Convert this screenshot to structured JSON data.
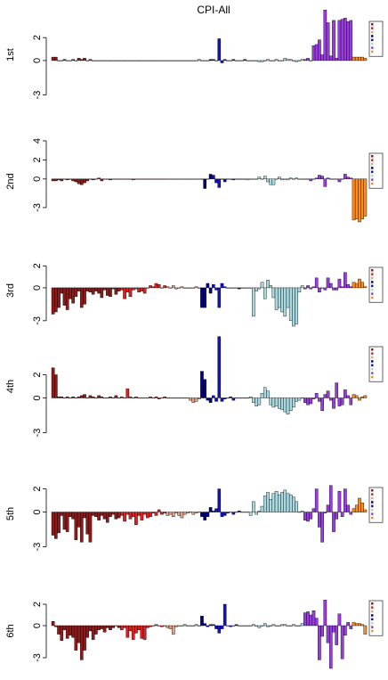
{
  "chart_data": [
    {
      "type": "bar",
      "title": "CPI-All",
      "ylabel": "1st",
      "ylim": [
        -3.5,
        4.5
      ],
      "yticks": [
        2,
        0,
        -3
      ],
      "series": [
        {
          "color": "#8b1a1a",
          "values": [
            0.3,
            0.3,
            0,
            0,
            0.1,
            0,
            0,
            0.1,
            0,
            0.2,
            0.1,
            0.2,
            0,
            0.1,
            0,
            0,
            0,
            0,
            0,
            0,
            0,
            0,
            0,
            0
          ]
        },
        {
          "color": "#e02020",
          "values": [
            0,
            0,
            0,
            0,
            0,
            0,
            0,
            0,
            0,
            0,
            0,
            0,
            0,
            0,
            0,
            0
          ]
        },
        {
          "color": "#e8a080",
          "values": [
            0,
            0,
            0,
            0,
            0,
            0,
            0,
            0,
            0,
            0,
            0,
            0.1
          ]
        },
        {
          "color": "#00008b",
          "values": [
            0,
            0,
            0,
            0.1
          ]
        },
        {
          "color": "#1010d0",
          "values": [
            0.1,
            0,
            1.9,
            -0.2,
            0.1,
            0,
            0,
            0.1,
            0,
            0,
            0,
            0.1
          ]
        },
        {
          "color": "#a8d8e0",
          "values": [
            0,
            0,
            0,
            0,
            -0.1,
            -0.1,
            0,
            0.1,
            0,
            0,
            0.1,
            0,
            0,
            0.2,
            0.1,
            0.1,
            0,
            -0.1,
            0,
            0.1
          ]
        },
        {
          "color": "#9a3be2",
          "values": [
            0.1,
            0.2,
            0,
            1.3,
            1.4,
            1.8,
            0.5,
            4.4,
            3.3,
            0.4,
            3.5,
            0.2,
            3.5,
            3.6,
            3.7,
            3.4,
            3.5
          ]
        },
        {
          "color": "#ff8c1a",
          "values": [
            0.3,
            0.3,
            0.3,
            0.3,
            0.2
          ]
        }
      ]
    },
    {
      "type": "bar",
      "ylabel": "2nd",
      "ylim": [
        -4.5,
        4
      ],
      "yticks": [
        4,
        2,
        0,
        -3
      ],
      "series": [
        {
          "color": "#8b1a1a",
          "values": [
            -0.2,
            -0.2,
            -0.1,
            -0.2,
            0,
            -0.1,
            0,
            -0.2,
            -0.3,
            -0.5,
            -0.6,
            -0.4,
            -0.2,
            0,
            -0.1,
            0,
            0.1,
            -0.2,
            0,
            0,
            -0.1,
            0,
            0,
            0
          ]
        },
        {
          "color": "#e02020",
          "values": [
            0,
            0,
            0,
            0,
            -0.1,
            0,
            0,
            0,
            0,
            0,
            0,
            0,
            0,
            0,
            0,
            0
          ]
        },
        {
          "color": "#e8a080",
          "values": [
            0,
            0,
            0,
            0,
            0,
            0,
            0,
            0,
            0,
            0,
            0,
            0
          ]
        },
        {
          "color": "#00008b",
          "values": [
            0,
            -1.0,
            0,
            0.5
          ]
        },
        {
          "color": "#1010d0",
          "values": [
            0.4,
            -0.4,
            -0.9,
            0,
            -0.3,
            0,
            0,
            -0.1,
            0,
            0,
            0,
            0
          ]
        },
        {
          "color": "#a8d8e0",
          "values": [
            -0.1,
            0,
            0,
            0,
            0.2,
            0,
            0.3,
            -0.3,
            -0.6,
            -0.6,
            0,
            0.2,
            -0.1,
            0,
            -0.1,
            0.1,
            0,
            0.1,
            0,
            0
          ]
        },
        {
          "color": "#9a3be2",
          "values": [
            0,
            0,
            -0.2,
            0,
            0.1,
            0.4,
            0.3,
            -0.8,
            0.1,
            0,
            0,
            0,
            -0.3,
            0,
            0.5,
            0.2,
            0.1
          ]
        },
        {
          "color": "#ff8c1a",
          "values": [
            -4.3,
            -4.2,
            -4.5,
            -4.2,
            -3.9
          ]
        }
      ]
    },
    {
      "type": "bar",
      "ylabel": "3rd",
      "ylim": [
        -3.5,
        3
      ],
      "yticks": [
        2,
        0,
        -3
      ],
      "series": [
        {
          "color": "#8b1a1a",
          "values": [
            -2.4,
            -2.2,
            -1.8,
            -0.5,
            -1.6,
            -2.0,
            -1.0,
            -1.4,
            -0.8,
            -0.3,
            -1.8,
            -1.5,
            -0.3,
            -0.4,
            -0.6,
            -0.3,
            -0.5,
            -0.9,
            -0.2,
            -0.7,
            -0.8,
            -0.1,
            -0.6,
            -0.3
          ]
        },
        {
          "color": "#e02020",
          "values": [
            -0.2,
            -1.0,
            -0.4,
            -0.8,
            -0.2,
            -0.1,
            -0.4,
            -0.3,
            -0.5,
            0,
            0.2,
            0.1,
            0.4,
            0.3,
            0,
            0.2
          ]
        },
        {
          "color": "#e8a080",
          "values": [
            0.1,
            0,
            0.2,
            -0.1,
            0,
            0.1,
            0,
            0,
            0,
            0,
            0.1,
            0
          ]
        },
        {
          "color": "#00008b",
          "values": [
            -1.8,
            -1.8,
            0.4,
            -0.5
          ]
        },
        {
          "color": "#1010d0",
          "values": [
            0.3,
            -0.2,
            -1.8,
            0.4,
            0.1,
            0,
            0,
            0,
            0,
            -0.1,
            0,
            0
          ]
        },
        {
          "color": "#a8d8e0",
          "values": [
            0,
            0,
            -2.6,
            -0.3,
            -0.1,
            0.5,
            -1.0,
            0.7,
            0.2,
            -0.9,
            -2.0,
            -1.8,
            -2.2,
            -2.6,
            -1.8,
            -3.0,
            -3.5,
            -3.3,
            -0.4,
            0.2
          ]
        },
        {
          "color": "#9a3be2",
          "values": [
            -0.1,
            0.2,
            -0.1,
            0.1,
            0.9,
            -0.4,
            0,
            -0.2,
            0.9,
            0.4,
            -0.2,
            -0.2,
            0.8,
            0.1,
            1.4,
            0.3,
            0.1
          ]
        },
        {
          "color": "#ff8c1a",
          "values": [
            0.5,
            0.4,
            0.8,
            0.5,
            0.1
          ]
        }
      ]
    },
    {
      "type": "bar",
      "ylabel": "4th",
      "ylim": [
        -3.5,
        5.5
      ],
      "yticks": [
        2,
        0,
        -3
      ],
      "series": [
        {
          "color": "#8b1a1a",
          "values": [
            2.6,
            2.0,
            0.1,
            0.1,
            0,
            0.1,
            0,
            0.1,
            0,
            0.1,
            0.2,
            0.3,
            0,
            0.2,
            0.1,
            0,
            0.2,
            0.1,
            0,
            0,
            0.1,
            0,
            0.2,
            0
          ]
        },
        {
          "color": "#e02020",
          "values": [
            0.1,
            0,
            0.8,
            0.1,
            0,
            0.1,
            0,
            0,
            0,
            0,
            0.1,
            0,
            0.1,
            -0.1,
            0,
            0.1
          ]
        },
        {
          "color": "#e8a080",
          "values": [
            0,
            0,
            0,
            0,
            0,
            0,
            0,
            0,
            -0.2,
            -0.4,
            -0.3,
            -0.1
          ]
        },
        {
          "color": "#00008b",
          "values": [
            2.3,
            1.6,
            -0.2,
            -0.4
          ]
        },
        {
          "color": "#1010d0",
          "values": [
            0.2,
            -0.3,
            5.3,
            -0.3,
            -0.1,
            0,
            0.1,
            -0.2,
            0,
            0,
            0,
            0
          ]
        },
        {
          "color": "#a8d8e0",
          "values": [
            0,
            0.1,
            -0.4,
            -0.7,
            -0.6,
            0.4,
            0.9,
            0.6,
            -0.6,
            -0.8,
            -0.7,
            -0.9,
            -1.0,
            -1.2,
            -1.4,
            -1.1,
            -0.8,
            -0.3,
            -0.2,
            0
          ]
        },
        {
          "color": "#9a3be2",
          "values": [
            -0.4,
            -0.6,
            -0.5,
            -0.1,
            0.4,
            -0.3,
            -1.1,
            0.3,
            0.6,
            -0.2,
            -0.9,
            1.3,
            -0.7,
            -0.6,
            0.7,
            0.2,
            -0.6
          ]
        },
        {
          "color": "#ff8c1a",
          "values": [
            0.3,
            0.2,
            -0.2,
            0.1,
            0.2
          ]
        }
      ]
    },
    {
      "type": "bar",
      "ylabel": "5th",
      "ylim": [
        -3.5,
        3.2
      ],
      "yticks": [
        2,
        0,
        -3
      ],
      "series": [
        {
          "color": "#8b1a1a",
          "values": [
            -2.0,
            -2.3,
            -1.8,
            -0.3,
            -1.5,
            -1.7,
            -0.4,
            -0.6,
            -2.4,
            -1.3,
            -2.6,
            -0.5,
            -1.9,
            -2.6,
            -0.3,
            -0.4,
            -0.7,
            -0.3,
            -0.6,
            -0.9,
            -0.4,
            -0.2,
            -0.6,
            -0.5
          ]
        },
        {
          "color": "#e02020",
          "values": [
            -0.3,
            -0.8,
            -0.2,
            -0.6,
            -0.4,
            -1.1,
            -0.3,
            -0.7,
            -0.2,
            -0.5,
            -0.4,
            -0.1,
            -0.3,
            0.2,
            -0.2,
            -0.1
          ]
        },
        {
          "color": "#e8a080",
          "values": [
            -0.3,
            -0.2,
            -0.4,
            -0.1,
            -0.3,
            -0.5,
            -0.2,
            -0.1,
            0,
            -0.2,
            -0.1,
            0
          ]
        },
        {
          "color": "#00008b",
          "values": [
            -0.4,
            -0.7,
            -0.4,
            0.4
          ]
        },
        {
          "color": "#1010d0",
          "values": [
            0.1,
            0.3,
            2.0,
            -0.4,
            -0.3,
            -0.1,
            0,
            -0.2,
            0,
            0.1,
            0,
            0
          ]
        },
        {
          "color": "#a8d8e0",
          "values": [
            0,
            -0.3,
            0.9,
            -0.2,
            0.1,
            0.5,
            1.4,
            1.7,
            1.1,
            1.6,
            1.8,
            1.5,
            1.7,
            1.9,
            1.6,
            1.5,
            1.3,
            0.9,
            0,
            0.1
          ]
        },
        {
          "color": "#9a3be2",
          "values": [
            -0.7,
            -0.8,
            -0.6,
            0.3,
            2.0,
            -1.3,
            -2.6,
            -0.1,
            0.6,
            2.3,
            -1.7,
            -0.6,
            1.8,
            -0.4,
            2.0,
            0.6,
            -0.2
          ]
        },
        {
          "color": "#ff8c1a",
          "values": [
            0.3,
            0.6,
            1.2,
            0.8,
            0.2
          ]
        }
      ]
    },
    {
      "type": "bar",
      "ylabel": "6th",
      "ylim": [
        -4.5,
        3.5
      ],
      "yticks": [
        2,
        0,
        -3
      ],
      "series": [
        {
          "color": "#8b1a1a",
          "values": [
            0.4,
            -0.1,
            -0.8,
            -1.4,
            -0.4,
            -1.2,
            -0.9,
            -1.1,
            -2.3,
            -1.6,
            -3.2,
            -2.3,
            -1.1,
            -0.5,
            -1.3,
            -0.8,
            -0.4,
            -0.3,
            -0.6,
            -0.2,
            -0.4,
            -0.2,
            0,
            -0.2
          ]
        },
        {
          "color": "#e02020",
          "values": [
            -0.4,
            -0.2,
            -1.1,
            -0.5,
            -1.3,
            -0.7,
            -0.4,
            -1.2,
            -1.3,
            -0.2,
            -0.1,
            0,
            0.1,
            0,
            -0.1,
            0
          ]
        },
        {
          "color": "#e8a080",
          "values": [
            -0.2,
            -0.3,
            -0.8,
            -0.1,
            0,
            0,
            0.1,
            0,
            0,
            0,
            0.1,
            0
          ]
        },
        {
          "color": "#00008b",
          "values": [
            0.9,
            0.2,
            -0.1,
            0.1
          ]
        },
        {
          "color": "#1010d0",
          "values": [
            0.1,
            -0.3,
            -0.7,
            -0.3,
            2.0,
            0,
            -0.1,
            0,
            0.1,
            0,
            0,
            0
          ]
        },
        {
          "color": "#a8d8e0",
          "values": [
            0,
            0,
            0.1,
            0,
            -0.2,
            0,
            0.2,
            -0.1,
            0,
            0.1,
            0,
            0,
            0.1,
            0.1,
            0,
            0,
            0.1,
            0,
            0,
            0.2
          ]
        },
        {
          "color": "#9a3be2",
          "values": [
            1.2,
            1.3,
            1.0,
            1.4,
            0.7,
            -3.2,
            -1.0,
            2.4,
            -1.6,
            -4.0,
            -0.6,
            -1.8,
            1.1,
            -3.1,
            -0.9,
            0.3,
            -0.3
          ]
        },
        {
          "color": "#ff8c1a",
          "values": [
            0.3,
            0.2,
            0.2,
            0.1,
            -0.8
          ]
        }
      ]
    }
  ]
}
